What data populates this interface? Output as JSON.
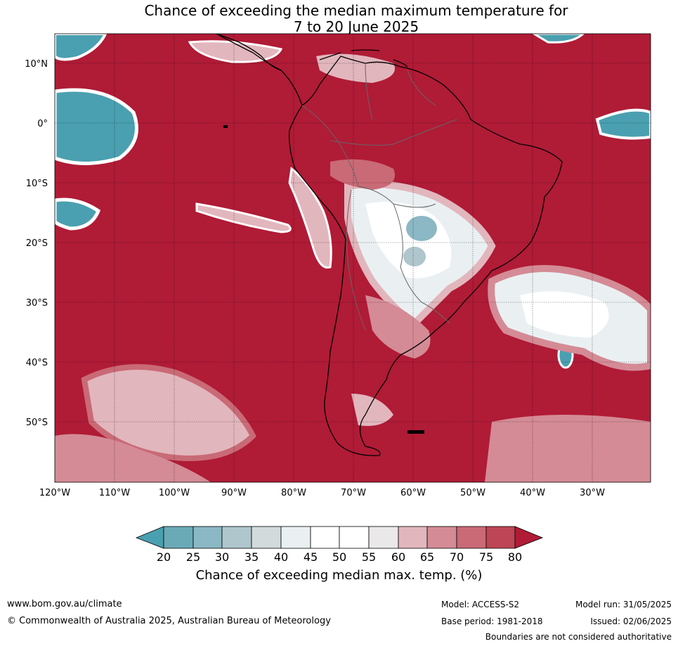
{
  "title_line1": "Chance of exceeding the median maximum temperature for",
  "title_line2": "7 to 20 June 2025",
  "lat_labels": [
    "10°N",
    "0°",
    "10°S",
    "20°S",
    "30°S",
    "40°S",
    "50°S"
  ],
  "lon_labels": [
    "120°W",
    "110°W",
    "100°W",
    "90°W",
    "80°W",
    "70°W",
    "60°W",
    "50°W",
    "40°W",
    "30°W"
  ],
  "colorbar": {
    "ticks": [
      "20",
      "25",
      "30",
      "35",
      "40",
      "45",
      "50",
      "55",
      "60",
      "65",
      "70",
      "75",
      "80"
    ],
    "colors": [
      "#4aa0b0",
      "#6aaab6",
      "#8bb8c4",
      "#aec6cc",
      "#d2dadc",
      "#eaf0f2",
      "#ffffff",
      "#ffffff",
      "#ebe8e9",
      "#e2b6bd",
      "#d48b96",
      "#c96a76",
      "#be4555",
      "#b01b36"
    ],
    "label": "Chance of exceeding median max. temp. (%)"
  },
  "map_colors": {
    "high": "#b01b36",
    "mid_high": "#c96a76",
    "mid": "#e2b6bd",
    "neutral": "#ffffff",
    "low": "#8bb8c4",
    "very_low": "#4aa0b0"
  },
  "footer": {
    "website": "www.bom.gov.au/climate",
    "copyright": "© Commonwealth of Australia 2025, Australian Bureau of Meteorology",
    "model": "Model: ACCESS-S2",
    "base_period": "Base period: 1981-2018",
    "model_run": "Model run: 31/05/2025",
    "issued": "Issued: 02/06/2025",
    "disclaimer": "Boundaries are not considered authoritative"
  }
}
